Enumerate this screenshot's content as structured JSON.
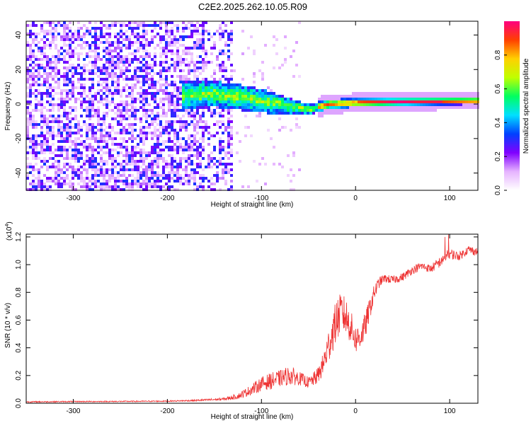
{
  "title": "C2E2.2025.262.10.05.R09",
  "chart_data": [
    {
      "type": "heatmap",
      "name": "spectrogram",
      "xlabel": "Height of straight line (km)",
      "ylabel": "Frequency (Hz)",
      "xlim": [
        -350,
        130
      ],
      "ylim": [
        -50,
        48
      ],
      "xticks": [
        "-300",
        "-200",
        "-100",
        "0",
        "100"
      ],
      "xtick_values": [
        -300,
        -200,
        -100,
        0,
        100
      ],
      "yticks": [
        "-40",
        "-20",
        "0",
        "20",
        "40"
      ],
      "ytick_values": [
        -40,
        -20,
        0,
        20,
        40
      ],
      "colorbar": {
        "label": "Normalized spectral amplitude",
        "range": [
          0,
          1
        ],
        "ticks": [
          "0.0",
          "0.2",
          "0.4",
          "0.6",
          "0.8"
        ],
        "tick_values": [
          0.0,
          0.2,
          0.4,
          0.6,
          0.8
        ],
        "colors": [
          "#ffffff",
          "#e6b3ff",
          "#8000ff",
          "#0040ff",
          "#00e0ff",
          "#00ff60",
          "#c0ff00",
          "#ffd000",
          "#ff4000",
          "#ff0080"
        ]
      },
      "features": {
        "noise_region_x": [
          -350,
          -130
        ],
        "noise_level": 0.25,
        "signal_onset_x": -185,
        "signal_band_centers": [
          [
            -185,
            5
          ],
          [
            -150,
            6
          ],
          [
            -110,
            3
          ],
          [
            -80,
            0
          ],
          [
            -50,
            -3
          ],
          [
            -30,
            0
          ],
          [
            0,
            1
          ],
          [
            50,
            1.5
          ],
          [
            130,
            2
          ]
        ],
        "signal_band_halfwidth_hz": [
          [
            -185,
            8
          ],
          [
            -100,
            7
          ],
          [
            -50,
            3
          ],
          [
            0,
            2.5
          ],
          [
            130,
            2
          ]
        ]
      }
    },
    {
      "type": "line",
      "name": "snr",
      "xlabel": "Height of straight line (km)",
      "ylabel": "SNR (10 * v/v)",
      "exponent_label": "(x10",
      "exponent_power": "4",
      "exponent_close": ")",
      "xlim": [
        -350,
        130
      ],
      "ylim": [
        0,
        1.22
      ],
      "xticks": [
        "-300",
        "-200",
        "-100",
        "0",
        "100"
      ],
      "xtick_values": [
        -300,
        -200,
        -100,
        0,
        100
      ],
      "yticks": [
        "0.0",
        "0.2",
        "0.4",
        "0.6",
        "0.8",
        "1.0",
        "1.2"
      ],
      "ytick_values": [
        0.0,
        0.2,
        0.4,
        0.6,
        0.8,
        1.0,
        1.2
      ],
      "color": "#ee3333",
      "series": [
        {
          "name": "SNR",
          "x": [
            -350,
            -300,
            -250,
            -200,
            -170,
            -140,
            -125,
            -110,
            -100,
            -90,
            -80,
            -70,
            -60,
            -50,
            -45,
            -40,
            -35,
            -30,
            -25,
            -20,
            -15,
            -10,
            -5,
            0,
            5,
            10,
            15,
            20,
            25,
            30,
            40,
            50,
            60,
            70,
            80,
            90,
            100,
            110,
            120,
            130
          ],
          "values": [
            0.01,
            0.012,
            0.013,
            0.015,
            0.02,
            0.03,
            0.05,
            0.1,
            0.14,
            0.16,
            0.18,
            0.2,
            0.18,
            0.15,
            0.17,
            0.2,
            0.27,
            0.38,
            0.5,
            0.6,
            0.66,
            0.62,
            0.55,
            0.46,
            0.48,
            0.55,
            0.68,
            0.8,
            0.87,
            0.9,
            0.89,
            0.91,
            0.96,
            0.99,
            0.97,
            1.02,
            1.08,
            1.06,
            1.11,
            1.09
          ],
          "noise": [
            0.004,
            0.004,
            0.004,
            0.004,
            0.006,
            0.01,
            0.02,
            0.04,
            0.05,
            0.06,
            0.06,
            0.07,
            0.05,
            0.04,
            0.05,
            0.06,
            0.08,
            0.12,
            0.14,
            0.16,
            0.14,
            0.14,
            0.12,
            0.1,
            0.1,
            0.1,
            0.08,
            0.06,
            0.04,
            0.03,
            0.03,
            0.03,
            0.03,
            0.03,
            0.03,
            0.04,
            0.04,
            0.03,
            0.03,
            0.03
          ]
        }
      ]
    }
  ]
}
